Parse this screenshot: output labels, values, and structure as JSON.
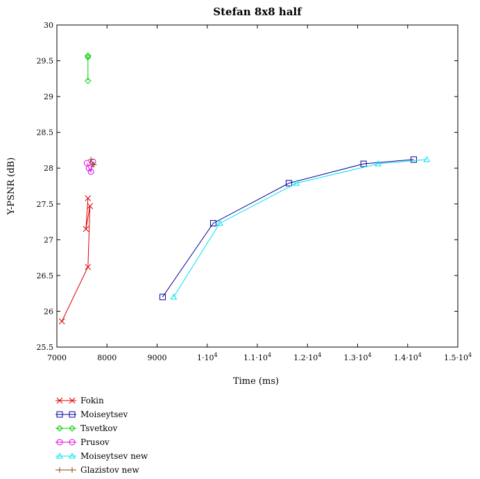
{
  "chart_data": {
    "type": "line",
    "title": "Stefan 8x8 half",
    "xlabel": "Time (ms)",
    "ylabel": "Y-PSNR (dB)",
    "xlim": [
      7000,
      15000
    ],
    "ylim": [
      25.5,
      30
    ],
    "x_ticks": [
      7000,
      8000,
      9000,
      10000,
      11000,
      12000,
      13000,
      14000,
      15000
    ],
    "x_tick_labels": [
      "7000",
      "8000",
      "9000",
      "1·10",
      "1.1·10",
      "1.2·10",
      "1.3·10",
      "1.4·10",
      "1.5·10"
    ],
    "x_tick_exponent": [
      "",
      "",
      "",
      "4",
      "4",
      "4",
      "4",
      "4",
      "4"
    ],
    "y_ticks": [
      25.5,
      26,
      26.5,
      27,
      27.5,
      28,
      28.5,
      29,
      29.5,
      30
    ],
    "y_tick_labels": [
      "25.5",
      "26",
      "26.5",
      "27",
      "27.5",
      "28",
      "28.5",
      "29",
      "29.5",
      "30"
    ],
    "grid": false,
    "legend_position": "bottom-left, below plot",
    "series": [
      {
        "name": "Fokin",
        "color": "#dd0000",
        "marker": "x",
        "x": [
          7100,
          7620,
          7660,
          7580,
          7620
        ],
        "y": [
          25.86,
          26.62,
          27.47,
          27.15,
          27.58
        ]
      },
      {
        "name": "Moiseytsev",
        "color": "#000099",
        "marker": "square",
        "x": [
          9110,
          10120,
          11630,
          13120,
          14120
        ],
        "y": [
          26.2,
          27.23,
          27.79,
          28.06,
          28.12
        ]
      },
      {
        "name": "Tsvetkov",
        "color": "#00cc00",
        "marker": "diamond",
        "x": [
          7620,
          7620,
          7620
        ],
        "y": [
          29.22,
          29.55,
          29.57
        ]
      },
      {
        "name": "Prusov",
        "color": "#dd00dd",
        "marker": "circle",
        "x": [
          7600,
          7640,
          7680,
          7720
        ],
        "y": [
          28.07,
          28.0,
          27.95,
          28.09
        ]
      },
      {
        "name": "Moiseytsev new",
        "color": "#00e0f0",
        "marker": "triangle",
        "x": [
          9330,
          10250,
          11780,
          13410,
          14380
        ],
        "y": [
          26.2,
          27.23,
          27.79,
          28.06,
          28.12
        ]
      },
      {
        "name": "Glazistov new",
        "color": "#8b4513",
        "marker": "plus",
        "x": [
          7680,
          7720,
          7740
        ],
        "y": [
          28.12,
          28.05,
          28.05
        ]
      }
    ]
  }
}
